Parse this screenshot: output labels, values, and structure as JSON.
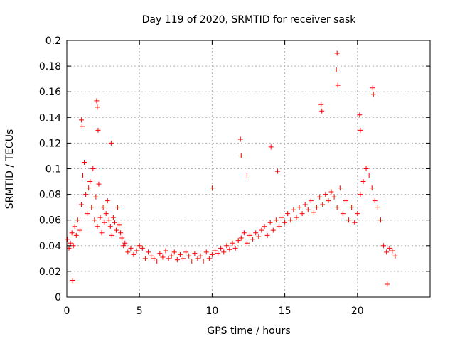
{
  "chart_data": {
    "type": "scatter",
    "title": "Day 119 of 2020, SRMTID for receiver sask",
    "xlabel": "GPS time / hours",
    "ylabel": "SRMTID / TECUs",
    "xlim": [
      0,
      25
    ],
    "ylim": [
      0,
      0.2
    ],
    "x_ticks": [
      0,
      5,
      10,
      15,
      20
    ],
    "x_tick_labels": [
      "0",
      "5",
      "10",
      "15",
      "20"
    ],
    "y_ticks": [
      0,
      0.02,
      0.04,
      0.06,
      0.08,
      0.1,
      0.12,
      0.14,
      0.16,
      0.18,
      0.2
    ],
    "y_tick_labels": [
      "0",
      "0.02",
      "0.04",
      "0.06",
      "0.08",
      "0.1",
      "0.12",
      "0.14",
      "0.16",
      "0.18",
      "0.2"
    ],
    "grid": true,
    "marker": "+",
    "color": "#ff0000",
    "series": [
      {
        "name": "SRMTID",
        "points_approx_note": "",
        "x": [
          0.05,
          0.15,
          0.25,
          0.35,
          0.45,
          0.55,
          0.65,
          0.75,
          0.9,
          1.0,
          1.1,
          1.2,
          1.3,
          1.4,
          1.5,
          1.6,
          1.7,
          1.8,
          1.9,
          2.0,
          2.1,
          2.2,
          2.3,
          2.4,
          2.5,
          2.6,
          2.7,
          2.8,
          2.9,
          3.0,
          3.1,
          3.2,
          3.3,
          3.4,
          3.5,
          3.6,
          3.7,
          3.8,
          3.9,
          4.0,
          4.2,
          4.4,
          4.6,
          4.8,
          5.0,
          5.2,
          5.4,
          5.6,
          5.8,
          6.0,
          6.2,
          6.4,
          6.6,
          6.8,
          7.0,
          7.2,
          7.4,
          7.6,
          7.8,
          8.0,
          8.2,
          8.4,
          8.6,
          8.8,
          9.0,
          9.2,
          9.4,
          9.6,
          9.8,
          10.0,
          10.2,
          10.4,
          10.6,
          10.8,
          11.0,
          11.2,
          11.4,
          11.6,
          11.8,
          12.0,
          12.2,
          12.4,
          12.6,
          12.8,
          13.0,
          13.2,
          13.4,
          13.6,
          13.8,
          14.0,
          14.2,
          14.4,
          14.6,
          14.8,
          15.0,
          15.2,
          15.4,
          15.6,
          15.8,
          16.0,
          16.2,
          16.4,
          16.6,
          16.8,
          17.0,
          17.2,
          17.4,
          17.6,
          17.8,
          18.0,
          18.2,
          18.4,
          18.6,
          18.8,
          19.0,
          19.2,
          19.4,
          19.6,
          19.8,
          20.0,
          20.2,
          20.4,
          20.6,
          20.8,
          21.0,
          21.2,
          21.4,
          21.6,
          21.8,
          22.0,
          22.2,
          22.4,
          22.6,
          1.0,
          1.05,
          2.05,
          2.1,
          2.15,
          3.05,
          11.95,
          12.0,
          14.05,
          14.5,
          17.5,
          17.55,
          18.55,
          18.6,
          18.65,
          20.15,
          20.2,
          21.05,
          21.1,
          22.05,
          0.4,
          10.0,
          12.4
        ],
        "y": [
          0.045,
          0.038,
          0.042,
          0.05,
          0.04,
          0.055,
          0.048,
          0.06,
          0.052,
          0.072,
          0.095,
          0.105,
          0.08,
          0.065,
          0.085,
          0.09,
          0.07,
          0.1,
          0.06,
          0.078,
          0.055,
          0.088,
          0.062,
          0.05,
          0.07,
          0.058,
          0.065,
          0.075,
          0.06,
          0.055,
          0.048,
          0.062,
          0.058,
          0.052,
          0.07,
          0.056,
          0.05,
          0.046,
          0.04,
          0.042,
          0.035,
          0.038,
          0.033,
          0.036,
          0.04,
          0.038,
          0.03,
          0.035,
          0.032,
          0.03,
          0.028,
          0.034,
          0.031,
          0.036,
          0.03,
          0.032,
          0.035,
          0.029,
          0.033,
          0.03,
          0.035,
          0.032,
          0.028,
          0.034,
          0.03,
          0.032,
          0.028,
          0.035,
          0.03,
          0.033,
          0.036,
          0.034,
          0.038,
          0.035,
          0.04,
          0.037,
          0.042,
          0.038,
          0.044,
          0.046,
          0.05,
          0.042,
          0.048,
          0.045,
          0.05,
          0.047,
          0.052,
          0.055,
          0.048,
          0.058,
          0.052,
          0.06,
          0.055,
          0.062,
          0.058,
          0.065,
          0.06,
          0.068,
          0.062,
          0.07,
          0.065,
          0.072,
          0.068,
          0.075,
          0.066,
          0.07,
          0.078,
          0.072,
          0.08,
          0.075,
          0.082,
          0.078,
          0.07,
          0.085,
          0.065,
          0.075,
          0.06,
          0.07,
          0.058,
          0.065,
          0.08,
          0.09,
          0.1,
          0.095,
          0.085,
          0.075,
          0.07,
          0.06,
          0.04,
          0.035,
          0.038,
          0.036,
          0.032,
          0.138,
          0.133,
          0.153,
          0.148,
          0.13,
          0.12,
          0.123,
          0.11,
          0.117,
          0.098,
          0.15,
          0.145,
          0.177,
          0.19,
          0.165,
          0.142,
          0.13,
          0.163,
          0.158,
          0.01,
          0.013,
          0.085,
          0.095
        ]
      }
    ]
  }
}
